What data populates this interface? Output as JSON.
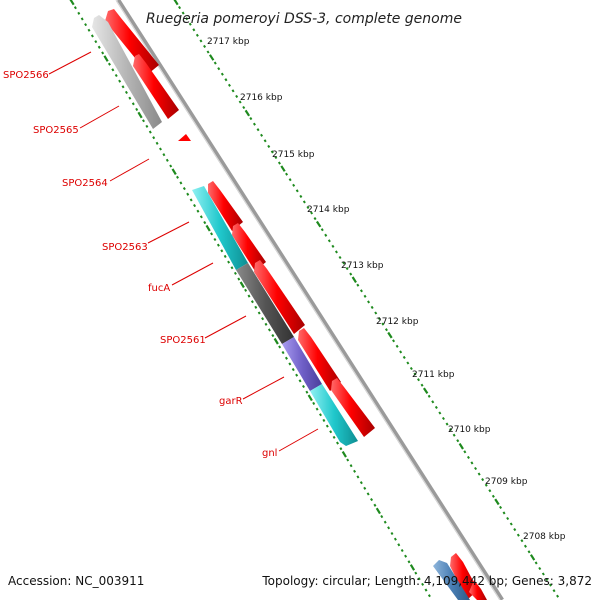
{
  "title": "Ruegeria pomeroyi DSS-3, complete genome",
  "kbp_ticks": [
    "2717 kbp",
    "2716 kbp",
    "2715 kbp",
    "2714 kbp",
    "2713 kbp",
    "2712 kbp",
    "2711 kbp",
    "2710 kbp",
    "2709 kbp",
    "2708 kbp"
  ],
  "gene_labels": [
    "SPO2566",
    "SPO2565",
    "SPO2564",
    "SPO2563",
    "fucA",
    "SPO2561",
    "garR",
    "gnl"
  ],
  "colors": {
    "label": "#dd0000",
    "cds_forward": "#ff0000",
    "cds_gray": "#b5b5b5",
    "cds_cyan": "#20c8cc",
    "cds_dark": "#555555",
    "cds_purple": "#7060c8",
    "cds_blue": "#4a7fb5",
    "backbone": "#909090",
    "ticks": "#1e8a1e"
  },
  "footer": {
    "accession": "Accession: NC_003911",
    "summary": "Topology: circular; Length: 4,109,442 bp; Genes: 3,872"
  }
}
